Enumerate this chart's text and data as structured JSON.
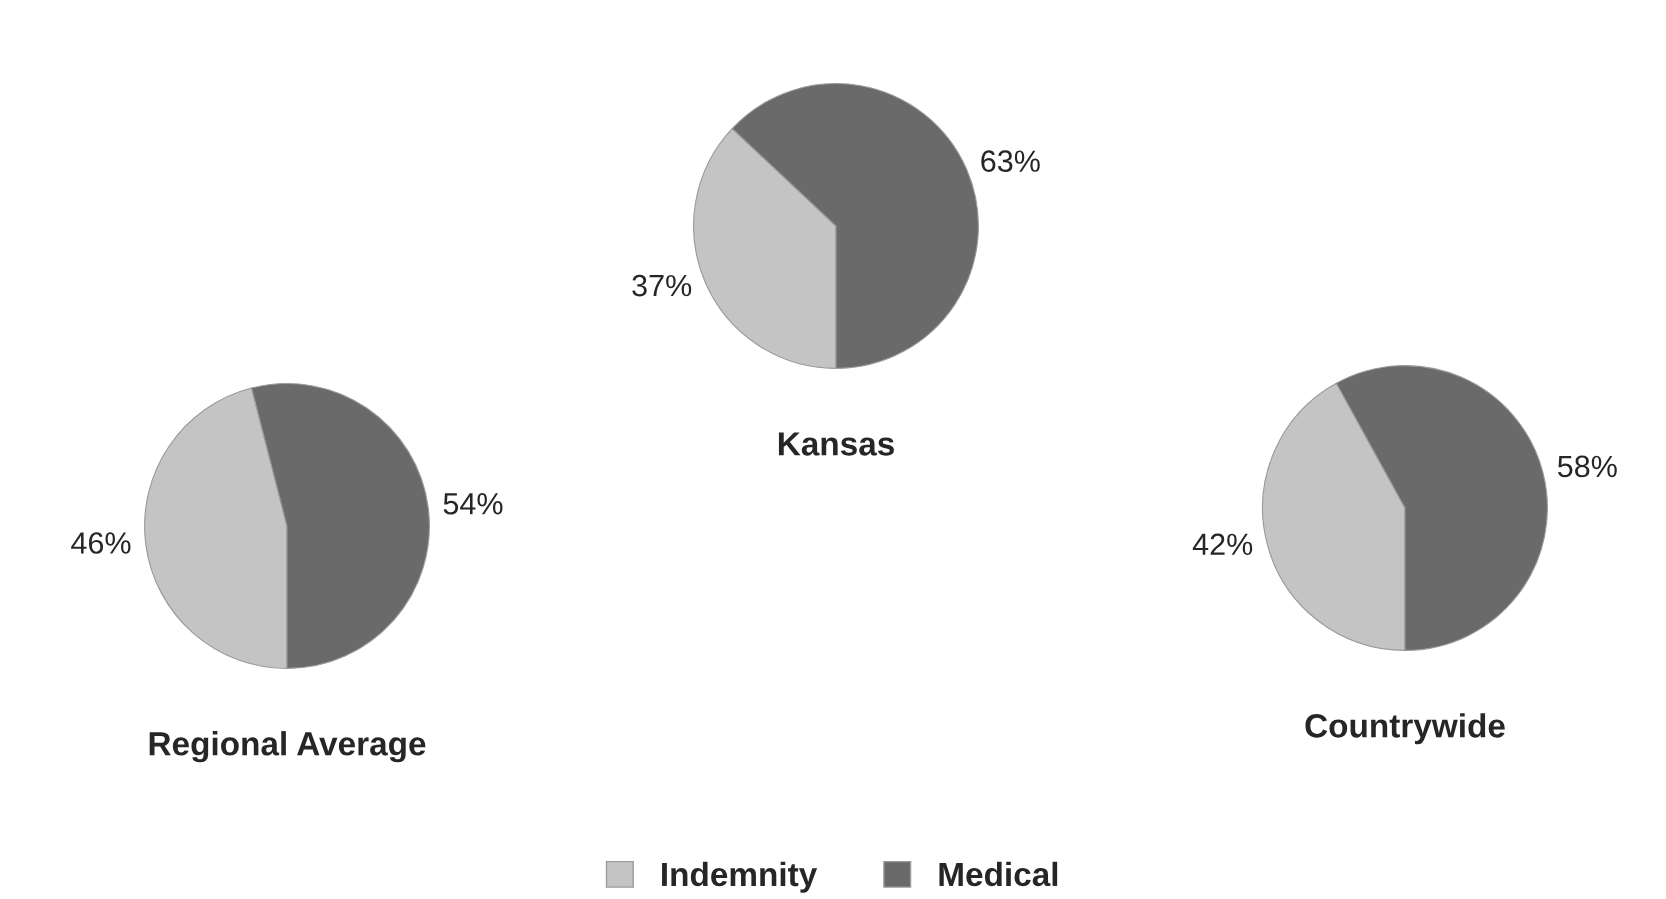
{
  "chart_data": [
    {
      "type": "pie",
      "title": "Regional Average",
      "categories": [
        "Indemnity",
        "Medical"
      ],
      "values": [
        46,
        54
      ],
      "colors": [
        "#c4c4c4",
        "#6a6a6a"
      ],
      "value_labels": [
        "46%",
        "54%"
      ],
      "legend": "bottom"
    },
    {
      "type": "pie",
      "title": "Kansas",
      "categories": [
        null,
        null
      ],
      "values": [
        37,
        63
      ],
      "colors": [
        "#c4c4c4",
        "#6a6a6a"
      ],
      "value_labels": [
        "37%",
        "63%"
      ]
    },
    {
      "type": "pie",
      "title": "Countrywide",
      "categories": [
        null,
        null
      ],
      "values": [
        42,
        58
      ],
      "colors": [
        "#c4c4c4",
        "#6a6a6a"
      ],
      "value_labels": [
        "42%",
        "58%"
      ]
    }
  ]
}
